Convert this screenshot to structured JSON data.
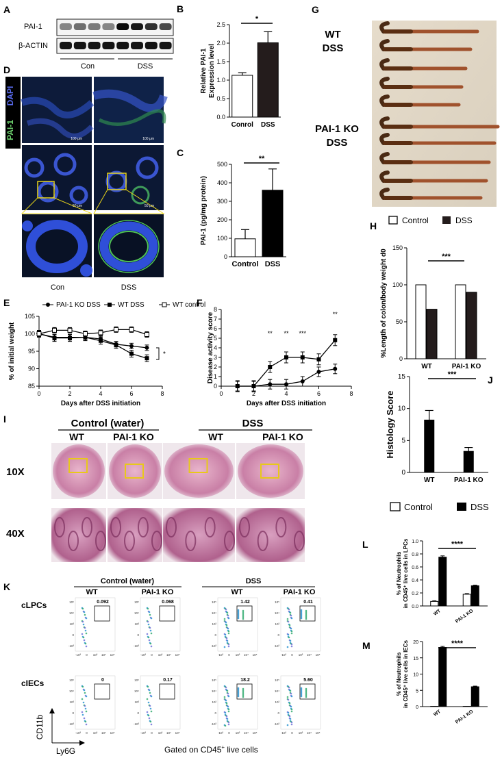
{
  "panel_letters": [
    "A",
    "B",
    "C",
    "D",
    "E",
    "F",
    "G",
    "H",
    "I",
    "J",
    "K",
    "L",
    "M"
  ],
  "blot": {
    "rows": [
      "PAI-1",
      "β-ACTIN"
    ],
    "groups": [
      "Con",
      "DSS"
    ]
  },
  "if_images": {
    "stain_labels": [
      "DAPI",
      "PAI-1"
    ],
    "scale_labels": [
      "100 μm",
      "100 μm",
      "50 μm",
      "50 μm"
    ],
    "groups": [
      "Con",
      "DSS"
    ]
  },
  "colon_photo": {
    "group_labels": [
      "WT\nDSS",
      "PAI-1 KO\nDSS"
    ]
  },
  "histology": {
    "header_groups": [
      "Control (water)",
      "DSS"
    ],
    "columns": [
      "WT",
      "PAI-1 KO",
      "WT",
      "PAI-1 KO"
    ],
    "rows": [
      "10X",
      "40X"
    ]
  },
  "flow": {
    "header_groups": [
      "Control (water)",
      "DSS"
    ],
    "columns": [
      "WT",
      "PAI-1 KO",
      "WT",
      "PAI-1 KO"
    ],
    "rows": [
      "cLPCs",
      "cIECs"
    ],
    "gate_values": [
      [
        "0.092",
        "0.068",
        "1.42",
        "0.41"
      ],
      [
        "0",
        "0.17",
        "18.2",
        "5.60"
      ]
    ],
    "axis_y": "CD11b",
    "axis_x": "Ly6G",
    "gated_note": "Gated on CD45",
    "gated_note_sup": "+",
    "gated_note_tail": " live cells",
    "tick_labels": [
      "-10³",
      "0",
      "10³",
      "10⁴",
      "10⁵"
    ]
  },
  "chart_data": [
    {
      "panel": "B",
      "type": "bar",
      "categories": [
        "Conrol",
        "DSS"
      ],
      "values": [
        1.13,
        2.01
      ],
      "errors": [
        0.07,
        0.3
      ],
      "colors": [
        "#ffffff",
        "#241c1c"
      ],
      "ylabel": "Relative PAI-1\nExpression level",
      "ylim": [
        0,
        2.5
      ],
      "yticks": [
        "0.0",
        "0.5",
        "1.0",
        "1.5",
        "2.0",
        "2.5"
      ],
      "significance": "*"
    },
    {
      "panel": "C",
      "type": "bar",
      "categories": [
        "Control",
        "DSS"
      ],
      "values": [
        97,
        360
      ],
      "errors": [
        50,
        115
      ],
      "colors": [
        "#ffffff",
        "#000000"
      ],
      "ylabel": "PAI-1 (pg/mg protein)",
      "ylim": [
        0,
        500
      ],
      "yticks": [
        "0",
        "100",
        "200",
        "300",
        "400",
        "500"
      ],
      "significance": "**"
    },
    {
      "panel": "E",
      "type": "line",
      "xlabel": "Days after DSS initiation",
      "ylabel": "% of initial weight",
      "xlim": [
        0,
        8
      ],
      "ylim": [
        85,
        105
      ],
      "xticks": [
        "0",
        "2",
        "4",
        "6",
        "8"
      ],
      "yticks": [
        "85",
        "90",
        "95",
        "100",
        "105"
      ],
      "series": [
        {
          "name": "PAI-1 KO DSS",
          "marker": "circle-filled",
          "x": [
            0,
            1,
            2,
            3,
            4,
            5,
            6,
            7
          ],
          "y": [
            100,
            99,
            99,
            99,
            98.5,
            97,
            96.5,
            96
          ]
        },
        {
          "name": "WT DSS",
          "marker": "square-filled",
          "x": [
            0,
            1,
            2,
            3,
            4,
            5,
            6,
            7
          ],
          "y": [
            100,
            98.8,
            98.8,
            99,
            98,
            96.8,
            94.3,
            93
          ]
        },
        {
          "name": "WT control",
          "marker": "square-open",
          "x": [
            0,
            1,
            2,
            3,
            4,
            5,
            6,
            7
          ],
          "y": [
            100,
            101,
            101,
            100,
            100.3,
            101.2,
            101.2,
            99.8
          ]
        }
      ],
      "significance": "*"
    },
    {
      "panel": "F",
      "type": "line",
      "xlabel": "Days after DSS initiation",
      "ylabel": "Disease activity score",
      "xlim": [
        0,
        8
      ],
      "ylim": [
        0,
        8
      ],
      "xticks": [
        "0",
        "2",
        "4",
        "6",
        "8"
      ],
      "yticks": [
        "0",
        "1",
        "2",
        "3",
        "4",
        "5",
        "6",
        "7",
        "8"
      ],
      "series": [
        {
          "marker": "square-filled",
          "x": [
            1,
            2,
            3,
            4,
            5,
            6,
            7
          ],
          "y": [
            0,
            0,
            2,
            3,
            3,
            2.8,
            4.8
          ]
        },
        {
          "marker": "circle-filled",
          "x": [
            1,
            2,
            3,
            4,
            5,
            6,
            7
          ],
          "y": [
            0,
            0,
            0.2,
            0.2,
            0.5,
            1.5,
            1.8
          ]
        }
      ],
      "annotations": [
        "**",
        "**",
        "***",
        "**"
      ]
    },
    {
      "panel": "H",
      "type": "bar",
      "legend": [
        "Control",
        "DSS"
      ],
      "categories": [
        "WT",
        "PAI-1 KO"
      ],
      "series": [
        {
          "name": "Control",
          "values": [
            100,
            100
          ],
          "color": "#ffffff"
        },
        {
          "name": "DSS",
          "values": [
            67,
            90
          ],
          "color": "#241c1c"
        }
      ],
      "ylabel": "%Length of colon/body weight d0",
      "ylim": [
        0,
        150
      ],
      "yticks": [
        "0",
        "50",
        "100",
        "150"
      ],
      "significance": "***"
    },
    {
      "panel": "J",
      "type": "bar",
      "categories": [
        "WT",
        "PAI-1 KO"
      ],
      "values": [
        8.2,
        3.3
      ],
      "errors": [
        1.5,
        0.6
      ],
      "ylabel": "Histology Score",
      "ylim": [
        0,
        15
      ],
      "yticks": [
        "0",
        "5",
        "10",
        "15"
      ],
      "significance": "***"
    },
    {
      "panel": "L",
      "type": "bar",
      "legend": [
        "Control",
        "DSS"
      ],
      "categories": [
        "WT",
        "PAI-1 KO"
      ],
      "series": [
        {
          "name": "Control",
          "values": [
            0.07,
            0.18
          ]
        },
        {
          "name": "DSS",
          "values": [
            0.75,
            0.31
          ]
        }
      ],
      "ylabel": "% of Neutrophils\nin CD45⁺ live cells in LPCs",
      "ylim": [
        0,
        1.0
      ],
      "yticks": [
        "0.0",
        "0.2",
        "0.4",
        "0.6",
        "0.8",
        "1.0"
      ],
      "significance": "****"
    },
    {
      "panel": "M",
      "type": "bar",
      "categories": [
        "WT",
        "PAI-1 KO"
      ],
      "series": [
        {
          "name": "Control",
          "values": [
            0.1,
            0.1
          ]
        },
        {
          "name": "DSS",
          "values": [
            18.2,
            6.1
          ]
        }
      ],
      "ylabel": "% of Neutrophils\nin CD45⁺ live cells in IECs",
      "ylim": [
        0,
        20
      ],
      "yticks": [
        "0",
        "5",
        "10",
        "15",
        "20"
      ],
      "significance": "****"
    }
  ]
}
